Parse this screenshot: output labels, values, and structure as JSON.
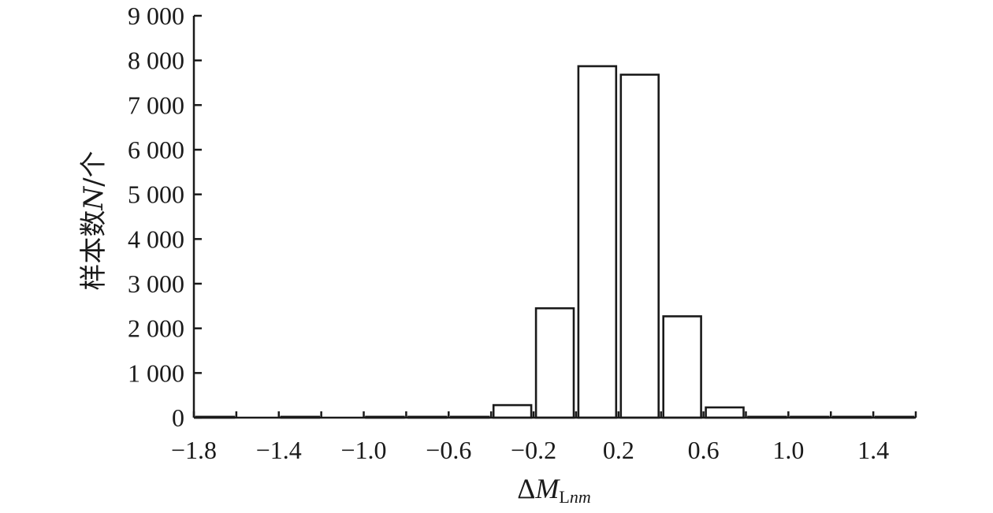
{
  "chart_data": {
    "type": "bar",
    "title": "",
    "ylabel": {
      "prefix": "样本数",
      "var": "N",
      "suffix": "/个"
    },
    "xlabel": {
      "delta": "Δ",
      "var": "M",
      "sub_upright": "L",
      "sub_italic": "nm"
    },
    "ylim": [
      0,
      9000
    ],
    "yticks": [
      0,
      1000,
      2000,
      3000,
      4000,
      5000,
      6000,
      7000,
      8000,
      9000
    ],
    "ytick_labels": [
      "0",
      "1 000",
      "2 000",
      "3 000",
      "4 000",
      "5 000",
      "6 000",
      "7 000",
      "8 000",
      "9 000"
    ],
    "xlim": [
      -1.8,
      1.6
    ],
    "xticks": [
      -1.8,
      -1.4,
      -1.0,
      -0.6,
      -0.2,
      0.2,
      0.6,
      1.0,
      1.4
    ],
    "xtick_labels": [
      "−1.8",
      "−1.4",
      "−1.0",
      "−0.6",
      "−0.2",
      "0.2",
      "0.6",
      "1.0",
      "1.4"
    ],
    "bin_width": 0.2,
    "bins": [
      {
        "center": -1.7,
        "value": 20
      },
      {
        "center": -1.5,
        "value": 0
      },
      {
        "center": -1.3,
        "value": 20
      },
      {
        "center": -1.1,
        "value": 0
      },
      {
        "center": -0.9,
        "value": 20
      },
      {
        "center": -0.7,
        "value": 20
      },
      {
        "center": -0.5,
        "value": 20
      },
      {
        "center": -0.3,
        "value": 280
      },
      {
        "center": -0.1,
        "value": 2450
      },
      {
        "center": 0.1,
        "value": 7870
      },
      {
        "center": 0.3,
        "value": 7680
      },
      {
        "center": 0.5,
        "value": 2270
      },
      {
        "center": 0.7,
        "value": 230
      },
      {
        "center": 0.9,
        "value": 20
      },
      {
        "center": 1.1,
        "value": 20
      },
      {
        "center": 1.3,
        "value": 20
      },
      {
        "center": 1.5,
        "value": 20
      }
    ]
  }
}
